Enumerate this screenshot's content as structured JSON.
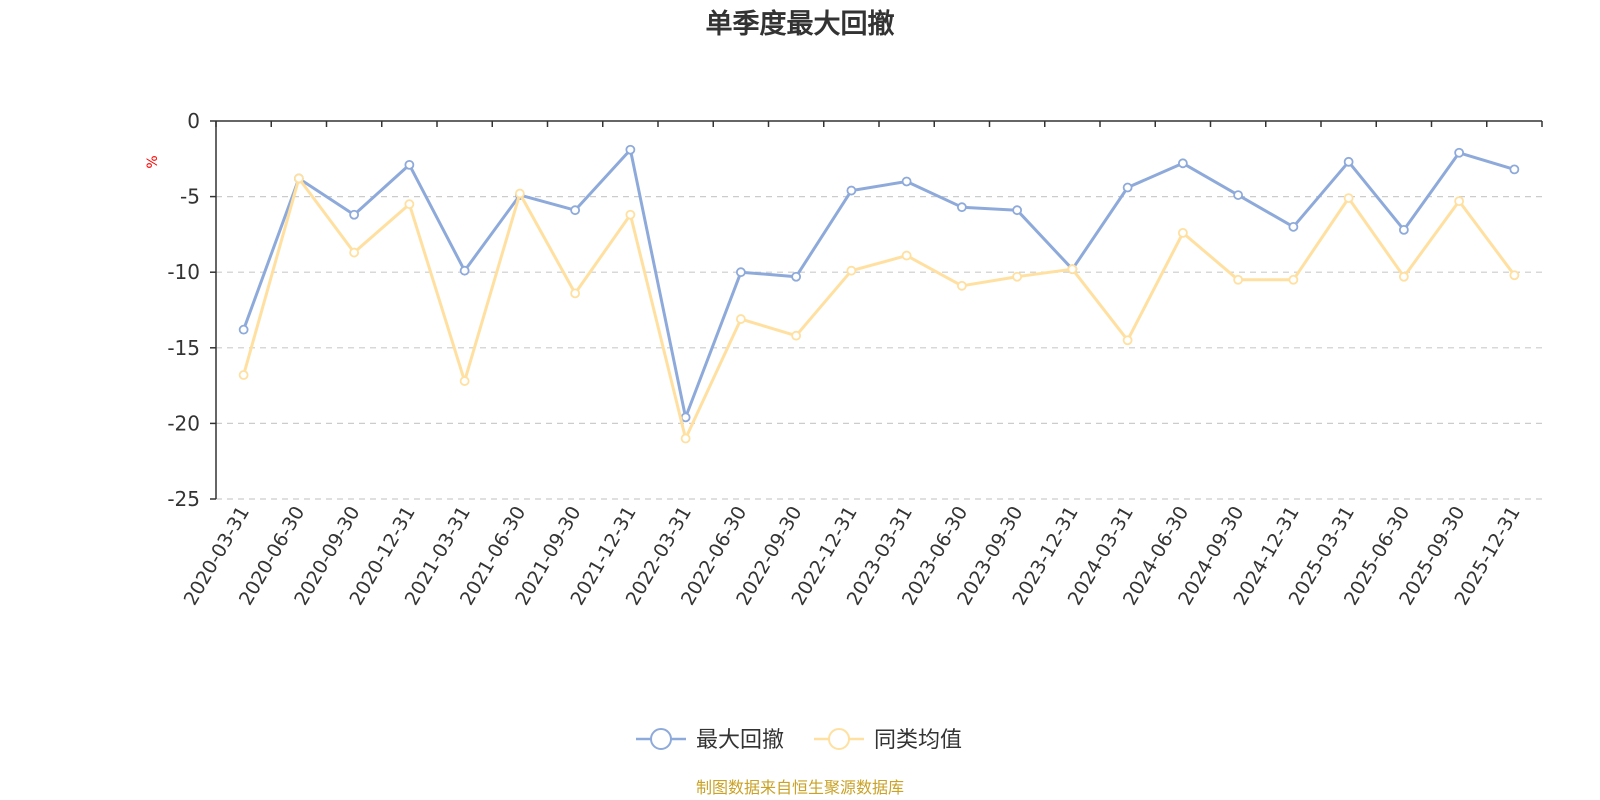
{
  "chart_data": {
    "type": "line",
    "title": "单季度最大回撤",
    "ylabel": "%",
    "ylim": [
      -25,
      0
    ],
    "yticks": [
      0,
      -5,
      -10,
      -15,
      -20,
      -25
    ],
    "grid": true,
    "legend_position": "bottom-center",
    "categories": [
      "2020-03-31",
      "2020-06-30",
      "2020-09-30",
      "2020-12-31",
      "2021-03-31",
      "2021-06-30",
      "2021-09-30",
      "2021-12-31",
      "2022-03-31",
      "2022-06-30",
      "2022-09-30",
      "2022-12-31",
      "2023-03-31",
      "2023-06-30",
      "2023-09-30",
      "2023-12-31",
      "2024-03-31",
      "2024-06-30",
      "2024-09-30",
      "2024-12-31",
      "2025-03-31",
      "2025-06-30",
      "2025-09-30",
      "2025-12-31"
    ],
    "series": [
      {
        "name": "最大回撤",
        "color": "#8eaadb",
        "values": [
          -13.8,
          -3.8,
          -6.2,
          -2.9,
          -9.9,
          -4.9,
          -5.9,
          -1.9,
          -19.6,
          -10.0,
          -10.3,
          -4.6,
          -4.0,
          -5.7,
          -5.9,
          -9.8,
          -4.4,
          -2.8,
          -4.9,
          -7.0,
          -2.7,
          -7.2,
          -2.1,
          -3.2
        ]
      },
      {
        "name": "同类均值",
        "color": "#ffe0a0",
        "values": [
          -16.8,
          -3.8,
          -8.7,
          -5.5,
          -17.2,
          -4.8,
          -11.4,
          -6.2,
          -21.0,
          -13.1,
          -14.2,
          -9.9,
          -8.9,
          -10.9,
          -10.3,
          -9.8,
          -14.5,
          -7.4,
          -10.5,
          -10.5,
          -5.1,
          -10.3,
          -5.3,
          -10.2
        ]
      }
    ],
    "source_text": "制图数据来自恒生聚源数据库",
    "colors": {
      "axis": "#333333",
      "grid": "#cccccc",
      "unit": "#ff0000",
      "source": "#c9a227"
    }
  }
}
